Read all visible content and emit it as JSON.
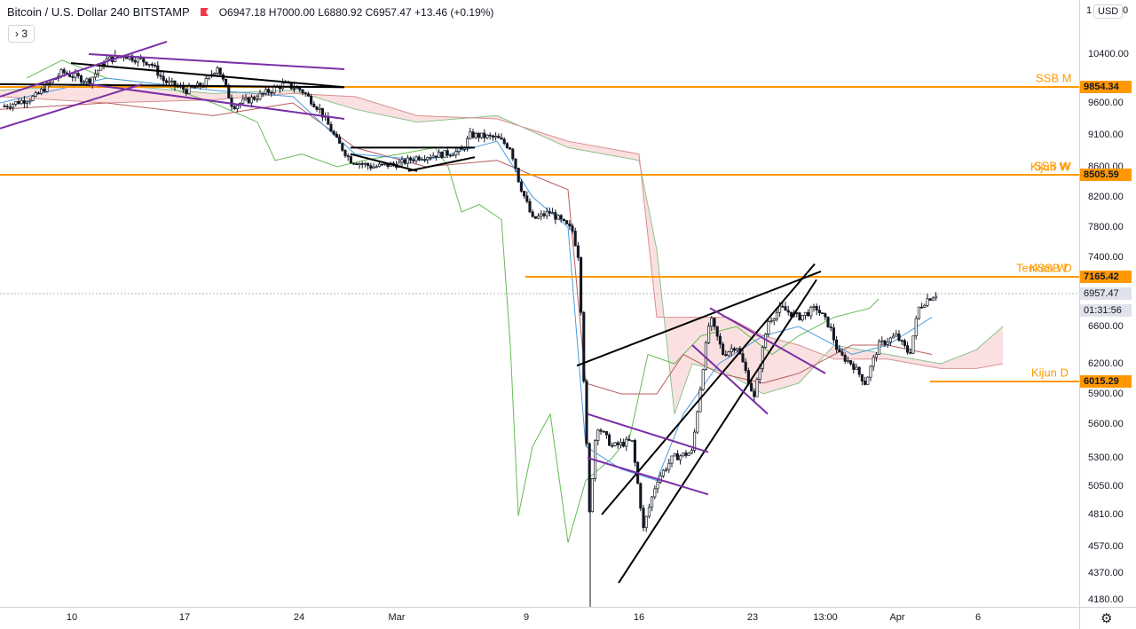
{
  "header": {
    "title": "Bitcoin / U.S. Dollar",
    "interval": "240",
    "exchange": "BITSTAMP",
    "open_label": "O",
    "open": "6947.18",
    "high_label": "H",
    "high": "7000.00",
    "low_label": "L",
    "low": "6880.92",
    "close_label": "C",
    "close": "6957.47",
    "change": "+13.46 (+0.19%)",
    "collapse_label": "3"
  },
  "axis": {
    "currency": "USD",
    "top_left": "1",
    "top_right": "0",
    "settings_icon": "gear-icon"
  },
  "colors": {
    "level": "#ff9800",
    "bull": "#131722",
    "trend_black": "#000000",
    "channel_purple": "#7b2fa6",
    "cloud_red": "#f5c6c6",
    "cloud_green": "#cfe8cf",
    "lagging": "#66bb55",
    "kijun": "#b85c5c",
    "tenkan": "#4a9be0"
  },
  "chart_data": {
    "type": "candlestick",
    "symbol": "Bitcoin / U.S. Dollar",
    "interval": "240",
    "ylim": [
      4100,
      10900
    ],
    "y_ticks": [
      10400,
      9600,
      9100,
      8600,
      8200,
      7800,
      7400,
      6600,
      6200,
      5900,
      5600,
      5300,
      5050,
      4810,
      4570,
      4370,
      4180
    ],
    "y_tick_labels": [
      "10400.00",
      "9600.00",
      "9100.00",
      "8600.00",
      "8200.00",
      "7800.00",
      "7400.00",
      "6600.00",
      "6200.00",
      "5900.00",
      "5600.00",
      "5300.00",
      "5050.00",
      "4810.00",
      "4570.00",
      "4370.00",
      "4180.00"
    ],
    "x_ticks": [
      "10",
      "17",
      "24",
      "Mar",
      "9",
      "16",
      "23",
      "13:00",
      "Apr",
      "6"
    ],
    "price_labels": [
      {
        "value": 9854.34,
        "text": "9854.34",
        "style": "level"
      },
      {
        "value": 8505.59,
        "text": "8505.59",
        "style": "level"
      },
      {
        "value": 7165.42,
        "text": "7165.42",
        "style": "level"
      },
      {
        "value": 6957.47,
        "text": "6957.47",
        "style": "last"
      },
      {
        "value": 6015.29,
        "text": "6015.29",
        "style": "level"
      }
    ],
    "countdown": "01:31:56",
    "levels": [
      {
        "name": "SSB M",
        "value": 9854.34
      },
      {
        "name": "SSB W",
        "value": 8505.59
      },
      {
        "name": "Kijun W",
        "value": 8505.59
      },
      {
        "name": "KSSB D",
        "value": 7165.42
      },
      {
        "name": "Tenkan W",
        "value": 7165.42
      },
      {
        "name": "Kijun D",
        "value": 6015.29
      }
    ],
    "price_path": [
      [
        5,
        9550
      ],
      [
        40,
        9700
      ],
      [
        70,
        10100
      ],
      [
        100,
        9950
      ],
      [
        120,
        10300
      ],
      [
        140,
        10380
      ],
      [
        170,
        10250
      ],
      [
        185,
        9950
      ],
      [
        210,
        9800
      ],
      [
        230,
        9900
      ],
      [
        245,
        10200
      ],
      [
        262,
        9550
      ],
      [
        290,
        9700
      ],
      [
        320,
        9900
      ],
      [
        340,
        9800
      ],
      [
        360,
        9500
      ],
      [
        380,
        9000
      ],
      [
        395,
        8700
      ],
      [
        420,
        8600
      ],
      [
        450,
        8650
      ],
      [
        470,
        8750
      ],
      [
        500,
        8800
      ],
      [
        520,
        8850
      ],
      [
        530,
        9100
      ],
      [
        560,
        9050
      ],
      [
        575,
        8900
      ],
      [
        585,
        8400
      ],
      [
        600,
        7900
      ],
      [
        620,
        8000
      ],
      [
        645,
        7750
      ],
      [
        652,
        7400
      ],
      [
        658,
        6000
      ],
      [
        664,
        4800
      ],
      [
        672,
        5600
      ],
      [
        690,
        5400
      ],
      [
        712,
        5450
      ],
      [
        725,
        4700
      ],
      [
        740,
        5100
      ],
      [
        758,
        5300
      ],
      [
        780,
        5350
      ],
      [
        800,
        6700
      ],
      [
        815,
        6300
      ],
      [
        830,
        6400
      ],
      [
        850,
        5850
      ],
      [
        865,
        6650
      ],
      [
        880,
        6800
      ],
      [
        900,
        6700
      ],
      [
        920,
        6800
      ],
      [
        935,
        6600
      ],
      [
        945,
        6300
      ],
      [
        960,
        6200
      ],
      [
        975,
        6000
      ],
      [
        990,
        6400
      ],
      [
        1010,
        6500
      ],
      [
        1025,
        6300
      ],
      [
        1035,
        6800
      ],
      [
        1045,
        6900
      ],
      [
        1055,
        6957
      ]
    ],
    "ichimoku": {
      "span_a": [
        [
          0,
          9800
        ],
        [
          120,
          9900
        ],
        [
          240,
          9750
        ],
        [
          330,
          9800
        ],
        [
          400,
          9500
        ],
        [
          470,
          9300
        ],
        [
          560,
          9400
        ],
        [
          640,
          8900
        ],
        [
          720,
          8700
        ],
        [
          740,
          7500
        ],
        [
          760,
          5700
        ],
        [
          780,
          6200
        ],
        [
          820,
          6100
        ],
        [
          860,
          5900
        ],
        [
          900,
          6000
        ],
        [
          940,
          6400
        ],
        [
          1000,
          6300
        ],
        [
          1060,
          6200
        ],
        [
          1100,
          6350
        ],
        [
          1130,
          6600
        ]
      ],
      "span_b": [
        [
          0,
          9700
        ],
        [
          120,
          9600
        ],
        [
          240,
          9650
        ],
        [
          330,
          9750
        ],
        [
          400,
          9700
        ],
        [
          470,
          9400
        ],
        [
          560,
          9350
        ],
        [
          640,
          9000
        ],
        [
          720,
          8800
        ],
        [
          740,
          6700
        ],
        [
          760,
          6700
        ],
        [
          820,
          6700
        ],
        [
          860,
          6500
        ],
        [
          900,
          6400
        ],
        [
          940,
          6250
        ],
        [
          1000,
          6250
        ],
        [
          1060,
          6150
        ],
        [
          1100,
          6150
        ],
        [
          1130,
          6200
        ]
      ],
      "lagging": [
        [
          30,
          10000
        ],
        [
          70,
          10300
        ],
        [
          120,
          10000
        ],
        [
          180,
          9900
        ],
        [
          240,
          9600
        ],
        [
          290,
          9300
        ],
        [
          310,
          8700
        ],
        [
          340,
          8800
        ],
        [
          380,
          8600
        ],
        [
          410,
          8700
        ],
        [
          450,
          8800
        ],
        [
          490,
          8900
        ],
        [
          505,
          8600
        ],
        [
          520,
          8000
        ],
        [
          540,
          8100
        ],
        [
          565,
          7900
        ],
        [
          575,
          6400
        ],
        [
          584,
          4800
        ],
        [
          600,
          5400
        ],
        [
          620,
          5700
        ],
        [
          640,
          4600
        ],
        [
          660,
          5100
        ],
        [
          690,
          5300
        ],
        [
          710,
          5500
        ],
        [
          730,
          6300
        ],
        [
          760,
          6200
        ],
        [
          790,
          6500
        ],
        [
          830,
          6600
        ],
        [
          870,
          6300
        ],
        [
          900,
          6500
        ],
        [
          940,
          6700
        ],
        [
          980,
          6800
        ],
        [
          990,
          6900
        ]
      ],
      "kijun": [
        [
          0,
          9500
        ],
        [
          120,
          9600
        ],
        [
          240,
          9400
        ],
        [
          330,
          9600
        ],
        [
          400,
          8900
        ],
        [
          480,
          8600
        ],
        [
          560,
          8700
        ],
        [
          600,
          8500
        ],
        [
          640,
          8300
        ],
        [
          660,
          6000
        ],
        [
          700,
          5900
        ],
        [
          740,
          5900
        ],
        [
          770,
          6300
        ],
        [
          810,
          6100
        ],
        [
          860,
          6000
        ],
        [
          900,
          6100
        ],
        [
          960,
          6400
        ],
        [
          1000,
          6400
        ],
        [
          1050,
          6300
        ]
      ],
      "tenkan": [
        [
          0,
          9600
        ],
        [
          120,
          10000
        ],
        [
          240,
          9800
        ],
        [
          330,
          9700
        ],
        [
          400,
          8800
        ],
        [
          480,
          8700
        ],
        [
          560,
          9000
        ],
        [
          600,
          8200
        ],
        [
          640,
          7800
        ],
        [
          660,
          5400
        ],
        [
          700,
          5200
        ],
        [
          740,
          5100
        ],
        [
          770,
          5700
        ],
        [
          810,
          6200
        ],
        [
          860,
          6500
        ],
        [
          900,
          6600
        ],
        [
          960,
          6300
        ],
        [
          1000,
          6400
        ],
        [
          1050,
          6700
        ]
      ]
    },
    "trendlines_black": [
      [
        [
          0,
          9900
        ],
        [
          388,
          9850
        ]
      ],
      [
        [
          80,
          10250
        ],
        [
          388,
          9850
        ]
      ],
      [
        [
          395,
          8900
        ],
        [
          535,
          8900
        ]
      ],
      [
        [
          395,
          8800
        ],
        [
          470,
          8550
        ]
      ],
      [
        [
          460,
          8550
        ],
        [
          535,
          8750
        ]
      ],
      [
        [
          650,
          6180
        ],
        [
          925,
          7230
        ]
      ],
      [
        [
          678,
          4810
        ],
        [
          918,
          7320
        ]
      ],
      [
        [
          697,
          4300
        ],
        [
          920,
          7130
        ]
      ]
    ],
    "trendlines_purple": [
      [
        [
          0,
          9700
        ],
        [
          188,
          10550
        ]
      ],
      [
        [
          0,
          9200
        ],
        [
          160,
          9900
        ]
      ],
      [
        [
          100,
          10400
        ],
        [
          388,
          10150
        ]
      ],
      [
        [
          100,
          9900
        ],
        [
          388,
          9350
        ]
      ],
      [
        [
          662,
          5700
        ],
        [
          798,
          5350
        ]
      ],
      [
        [
          662,
          5300
        ],
        [
          798,
          4980
        ]
      ],
      [
        [
          800,
          6800
        ],
        [
          930,
          6100
        ]
      ],
      [
        [
          780,
          6400
        ],
        [
          865,
          5700
        ]
      ]
    ]
  }
}
